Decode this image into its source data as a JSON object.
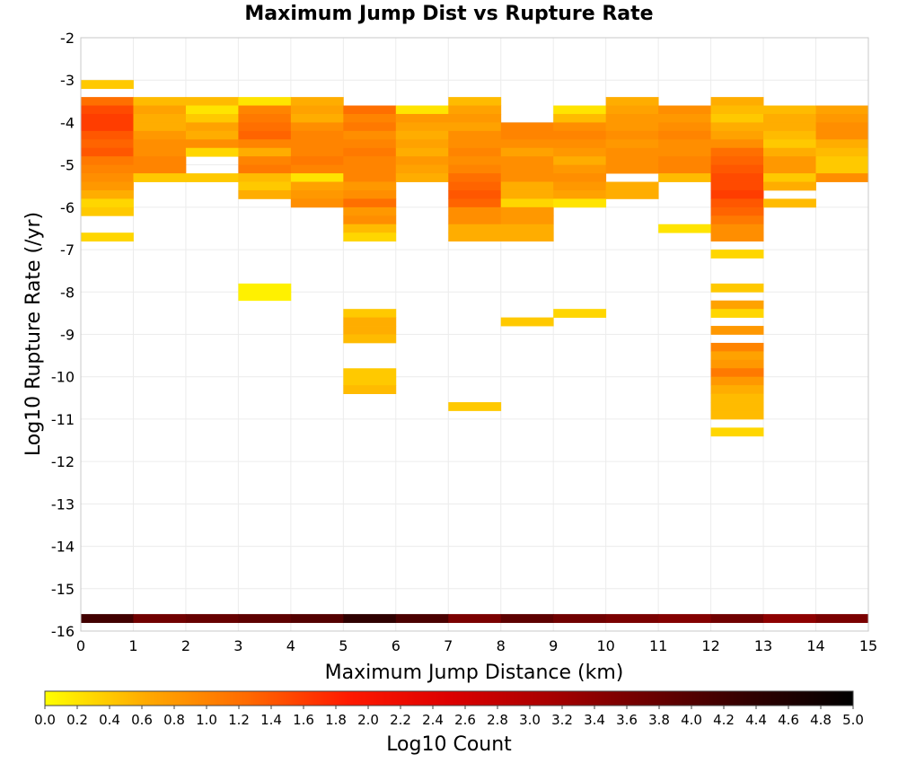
{
  "chart_data": {
    "type": "heatmap",
    "title": "Maximum Jump Dist vs Rupture Rate",
    "xlabel": "Maximum Jump Distance (km)",
    "ylabel": "Log10 Rupture Rate (/yr)",
    "xlim": [
      0,
      15
    ],
    "ylim": [
      -16,
      -2
    ],
    "x_ticks": [
      "0",
      "1",
      "2",
      "3",
      "4",
      "5",
      "6",
      "7",
      "8",
      "9",
      "10",
      "11",
      "12",
      "13",
      "14",
      "15"
    ],
    "y_ticks": [
      "-2",
      "-3",
      "-4",
      "-5",
      "-6",
      "-7",
      "-8",
      "-9",
      "-10",
      "-11",
      "-12",
      "-13",
      "-14",
      "-15",
      "-16"
    ],
    "grid": true,
    "x_bin_width": 1,
    "y_bin_height": 0.2,
    "colorbar": {
      "label": "Log10 Count",
      "range": [
        0,
        5
      ],
      "ticks": [
        "0.0",
        "0.2",
        "0.4",
        "0.6",
        "0.8",
        "1.0",
        "1.2",
        "1.4",
        "1.6",
        "1.8",
        "2.0",
        "2.2",
        "2.4",
        "2.6",
        "2.8",
        "3.0",
        "3.2",
        "3.4",
        "3.6",
        "3.8",
        "4.0",
        "4.2",
        "4.4",
        "4.6",
        "4.8",
        "5.0"
      ],
      "colors": [
        "#ffff00",
        "#ffaa00",
        "#ff6a00",
        "#ff1a00",
        "#dd0000",
        "#a80000",
        "#6b0000",
        "#300000",
        "#000000"
      ]
    },
    "cells": [
      [
        0,
        -3.2,
        0.4
      ],
      [
        0,
        -3.6,
        1.2
      ],
      [
        0,
        -3.8,
        1.5
      ],
      [
        0,
        -4.0,
        1.6
      ],
      [
        0,
        -4.2,
        1.6
      ],
      [
        0,
        -4.4,
        1.4
      ],
      [
        0,
        -4.6,
        1.3
      ],
      [
        0,
        -4.8,
        1.4
      ],
      [
        0,
        -5.0,
        1.1
      ],
      [
        0,
        -5.2,
        1.0
      ],
      [
        0,
        -5.4,
        0.9
      ],
      [
        0,
        -5.6,
        0.8
      ],
      [
        0,
        -5.8,
        0.6
      ],
      [
        0,
        -6.0,
        0.3
      ],
      [
        0,
        -6.2,
        0.4
      ],
      [
        0,
        -6.8,
        0.3
      ],
      [
        1,
        -3.6,
        0.5
      ],
      [
        1,
        -3.8,
        0.7
      ],
      [
        1,
        -4.0,
        0.6
      ],
      [
        1,
        -4.2,
        0.6
      ],
      [
        1,
        -4.4,
        0.8
      ],
      [
        1,
        -4.6,
        0.9
      ],
      [
        1,
        -4.8,
        0.9
      ],
      [
        1,
        -5.0,
        1.0
      ],
      [
        1,
        -5.2,
        1.0
      ],
      [
        1,
        -5.4,
        0.4
      ],
      [
        2,
        -3.6,
        0.5
      ],
      [
        2,
        -3.8,
        0.2
      ],
      [
        2,
        -4.0,
        0.4
      ],
      [
        2,
        -4.2,
        0.7
      ],
      [
        2,
        -4.4,
        0.6
      ],
      [
        2,
        -4.6,
        0.9
      ],
      [
        2,
        -4.8,
        0.3
      ],
      [
        2,
        -5.4,
        0.4
      ],
      [
        3,
        -3.6,
        0.2
      ],
      [
        3,
        -3.8,
        1.0
      ],
      [
        3,
        -4.0,
        1.1
      ],
      [
        3,
        -4.2,
        1.2
      ],
      [
        3,
        -4.4,
        1.3
      ],
      [
        3,
        -4.6,
        1.0
      ],
      [
        3,
        -4.8,
        0.6
      ],
      [
        3,
        -5.0,
        1.0
      ],
      [
        3,
        -5.2,
        1.1
      ],
      [
        3,
        -5.4,
        0.5
      ],
      [
        3,
        -5.6,
        0.4
      ],
      [
        3,
        -5.8,
        0.6
      ],
      [
        3,
        -8.0,
        0.1
      ],
      [
        3,
        -8.2,
        0.1
      ],
      [
        4,
        -3.6,
        0.6
      ],
      [
        4,
        -3.8,
        0.7
      ],
      [
        4,
        -4.0,
        0.6
      ],
      [
        4,
        -4.2,
        0.9
      ],
      [
        4,
        -4.4,
        1.0
      ],
      [
        4,
        -4.6,
        1.0
      ],
      [
        4,
        -4.8,
        1.0
      ],
      [
        4,
        -5.0,
        1.1
      ],
      [
        4,
        -5.2,
        1.0
      ],
      [
        4,
        -5.4,
        0.2
      ],
      [
        4,
        -5.6,
        0.7
      ],
      [
        4,
        -5.8,
        0.8
      ],
      [
        4,
        -6.0,
        0.9
      ],
      [
        5,
        -3.8,
        1.2
      ],
      [
        5,
        -4.0,
        1.0
      ],
      [
        5,
        -4.2,
        1.1
      ],
      [
        5,
        -4.4,
        0.9
      ],
      [
        5,
        -4.6,
        1.0
      ],
      [
        5,
        -4.8,
        1.1
      ],
      [
        5,
        -5.0,
        1.0
      ],
      [
        5,
        -5.2,
        1.0
      ],
      [
        5,
        -5.4,
        1.0
      ],
      [
        5,
        -5.6,
        0.8
      ],
      [
        5,
        -5.8,
        0.9
      ],
      [
        5,
        -6.0,
        1.2
      ],
      [
        5,
        -6.2,
        0.8
      ],
      [
        5,
        -6.4,
        0.9
      ],
      [
        5,
        -6.6,
        0.5
      ],
      [
        5,
        -6.8,
        0.3
      ],
      [
        5,
        -8.6,
        0.4
      ],
      [
        5,
        -8.8,
        0.6
      ],
      [
        5,
        -9.0,
        0.6
      ],
      [
        5,
        -9.2,
        0.5
      ],
      [
        5,
        -10.0,
        0.4
      ],
      [
        5,
        -10.2,
        0.4
      ],
      [
        5,
        -10.4,
        0.5
      ],
      [
        6,
        -3.8,
        0.2
      ],
      [
        6,
        -4.0,
        0.8
      ],
      [
        6,
        -4.2,
        0.7
      ],
      [
        6,
        -4.4,
        0.6
      ],
      [
        6,
        -4.6,
        0.7
      ],
      [
        6,
        -4.8,
        0.6
      ],
      [
        6,
        -5.0,
        0.8
      ],
      [
        6,
        -5.2,
        0.7
      ],
      [
        6,
        -5.4,
        0.6
      ],
      [
        7,
        -3.6,
        0.5
      ],
      [
        7,
        -3.8,
        0.7
      ],
      [
        7,
        -4.0,
        0.8
      ],
      [
        7,
        -4.2,
        0.7
      ],
      [
        7,
        -4.4,
        0.9
      ],
      [
        7,
        -4.6,
        0.9
      ],
      [
        7,
        -4.8,
        1.0
      ],
      [
        7,
        -5.0,
        0.9
      ],
      [
        7,
        -5.2,
        1.0
      ],
      [
        7,
        -5.4,
        1.2
      ],
      [
        7,
        -5.6,
        1.3
      ],
      [
        7,
        -5.8,
        1.4
      ],
      [
        7,
        -6.0,
        1.3
      ],
      [
        7,
        -6.2,
        0.9
      ],
      [
        7,
        -6.4,
        0.9
      ],
      [
        7,
        -6.6,
        0.6
      ],
      [
        7,
        -6.8,
        0.6
      ],
      [
        7,
        -10.8,
        0.4
      ],
      [
        8,
        -4.2,
        1.0
      ],
      [
        8,
        -4.4,
        1.0
      ],
      [
        8,
        -4.6,
        0.9
      ],
      [
        8,
        -4.8,
        0.7
      ],
      [
        8,
        -5.0,
        0.9
      ],
      [
        8,
        -5.2,
        0.9
      ],
      [
        8,
        -5.4,
        0.9
      ],
      [
        8,
        -5.6,
        0.6
      ],
      [
        8,
        -5.8,
        0.6
      ],
      [
        8,
        -6.0,
        0.3
      ],
      [
        8,
        -6.2,
        0.8
      ],
      [
        8,
        -6.4,
        0.8
      ],
      [
        8,
        -6.6,
        0.6
      ],
      [
        8,
        -6.8,
        0.6
      ],
      [
        8,
        -8.8,
        0.4
      ],
      [
        9,
        -3.8,
        0.2
      ],
      [
        9,
        -4.0,
        0.5
      ],
      [
        9,
        -4.2,
        0.9
      ],
      [
        9,
        -4.4,
        1.0
      ],
      [
        9,
        -4.6,
        0.9
      ],
      [
        9,
        -4.8,
        0.8
      ],
      [
        9,
        -5.0,
        0.6
      ],
      [
        9,
        -5.2,
        0.8
      ],
      [
        9,
        -5.4,
        0.9
      ],
      [
        9,
        -5.6,
        0.8
      ],
      [
        9,
        -5.8,
        0.7
      ],
      [
        9,
        -6.0,
        0.2
      ],
      [
        9,
        -8.6,
        0.3
      ],
      [
        10,
        -3.6,
        0.6
      ],
      [
        10,
        -3.8,
        0.7
      ],
      [
        10,
        -4.0,
        0.8
      ],
      [
        10,
        -4.2,
        0.8
      ],
      [
        10,
        -4.4,
        0.9
      ],
      [
        10,
        -4.6,
        0.8
      ],
      [
        10,
        -4.8,
        0.9
      ],
      [
        10,
        -5.0,
        0.9
      ],
      [
        10,
        -5.2,
        0.9
      ],
      [
        10,
        -5.6,
        0.6
      ],
      [
        10,
        -5.8,
        0.6
      ],
      [
        11,
        -3.8,
        0.9
      ],
      [
        11,
        -4.0,
        0.8
      ],
      [
        11,
        -4.2,
        0.9
      ],
      [
        11,
        -4.4,
        1.0
      ],
      [
        11,
        -4.6,
        0.9
      ],
      [
        11,
        -4.8,
        0.9
      ],
      [
        11,
        -5.0,
        1.0
      ],
      [
        11,
        -5.2,
        1.0
      ],
      [
        11,
        -5.4,
        0.5
      ],
      [
        11,
        -6.6,
        0.2
      ],
      [
        12,
        -3.6,
        0.6
      ],
      [
        12,
        -3.8,
        0.5
      ],
      [
        12,
        -4.0,
        0.4
      ],
      [
        12,
        -4.2,
        0.6
      ],
      [
        12,
        -4.4,
        0.7
      ],
      [
        12,
        -4.6,
        0.9
      ],
      [
        12,
        -4.8,
        1.2
      ],
      [
        12,
        -5.0,
        1.3
      ],
      [
        12,
        -5.2,
        1.4
      ],
      [
        12,
        -5.4,
        1.5
      ],
      [
        12,
        -5.6,
        1.5
      ],
      [
        12,
        -5.8,
        1.6
      ],
      [
        12,
        -6.0,
        1.4
      ],
      [
        12,
        -6.2,
        1.3
      ],
      [
        12,
        -6.4,
        1.1
      ],
      [
        12,
        -6.6,
        0.9
      ],
      [
        12,
        -6.8,
        0.9
      ],
      [
        12,
        -7.2,
        0.3
      ],
      [
        12,
        -8.0,
        0.4
      ],
      [
        12,
        -8.4,
        0.7
      ],
      [
        12,
        -8.6,
        0.3
      ],
      [
        12,
        -9.0,
        0.8
      ],
      [
        12,
        -9.4,
        1.0
      ],
      [
        12,
        -9.6,
        0.7
      ],
      [
        12,
        -9.8,
        0.8
      ],
      [
        12,
        -10.0,
        1.1
      ],
      [
        12,
        -10.2,
        0.8
      ],
      [
        12,
        -10.4,
        0.6
      ],
      [
        12,
        -10.6,
        0.5
      ],
      [
        12,
        -10.8,
        0.5
      ],
      [
        12,
        -11.0,
        0.5
      ],
      [
        12,
        -11.4,
        0.3
      ],
      [
        13,
        -3.8,
        0.5
      ],
      [
        13,
        -4.0,
        0.6
      ],
      [
        13,
        -4.2,
        0.6
      ],
      [
        13,
        -4.4,
        0.5
      ],
      [
        13,
        -4.6,
        0.4
      ],
      [
        13,
        -4.8,
        0.6
      ],
      [
        13,
        -5.0,
        0.8
      ],
      [
        13,
        -5.2,
        0.8
      ],
      [
        13,
        -5.4,
        0.4
      ],
      [
        13,
        -5.6,
        0.6
      ],
      [
        13,
        -6.0,
        0.5
      ],
      [
        14,
        -3.8,
        0.7
      ],
      [
        14,
        -4.0,
        0.8
      ],
      [
        14,
        -4.2,
        0.9
      ],
      [
        14,
        -4.4,
        0.9
      ],
      [
        14,
        -4.6,
        0.6
      ],
      [
        14,
        -4.8,
        0.5
      ],
      [
        14,
        -5.0,
        0.4
      ],
      [
        14,
        -5.2,
        0.4
      ],
      [
        14,
        -5.4,
        0.9
      ],
      [
        0,
        -15.8,
        4.2
      ],
      [
        1,
        -15.8,
        3.7
      ],
      [
        2,
        -15.8,
        3.8
      ],
      [
        3,
        -15.8,
        3.9
      ],
      [
        4,
        -15.8,
        4.0
      ],
      [
        5,
        -15.8,
        4.4
      ],
      [
        6,
        -15.8,
        4.1
      ],
      [
        7,
        -15.8,
        3.6
      ],
      [
        8,
        -15.8,
        3.9
      ],
      [
        9,
        -15.8,
        3.7
      ],
      [
        10,
        -15.8,
        3.6
      ],
      [
        11,
        -15.8,
        3.5
      ],
      [
        12,
        -15.8,
        3.7
      ],
      [
        13,
        -15.8,
        3.4
      ],
      [
        14,
        -15.8,
        3.6
      ]
    ]
  }
}
